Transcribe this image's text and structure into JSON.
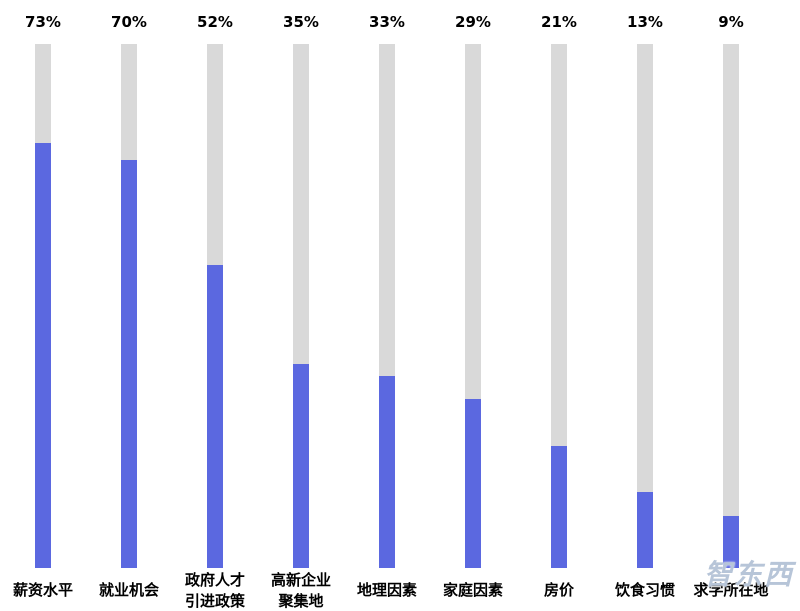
{
  "chart_data": {
    "type": "bar",
    "title": "",
    "xlabel": "",
    "ylabel": "",
    "ylim": [
      0,
      90
    ],
    "grid": false,
    "legend": "none",
    "categories": [
      "薪资水平",
      "就业机会",
      "政府人才引进政策",
      "高新企业聚集地",
      "地理因素",
      "家庭因素",
      "房价",
      "饮食习惯",
      "求学所在地"
    ],
    "categories_display": [
      [
        "薪资水平"
      ],
      [
        "就业机会"
      ],
      [
        "政府人才",
        "引进政策"
      ],
      [
        "高新企业",
        "聚集地"
      ],
      [
        "地理因素"
      ],
      [
        "家庭因素"
      ],
      [
        "房价"
      ],
      [
        "饮食习惯"
      ],
      [
        "求学所在地"
      ]
    ],
    "values": [
      73,
      70,
      52,
      35,
      33,
      29,
      21,
      13,
      9
    ],
    "value_labels": [
      "73%",
      "70%",
      "52%",
      "35%",
      "33%",
      "29%",
      "21%",
      "13%",
      "9%"
    ],
    "bar_color": "#5b68e0",
    "track_color": "#d9d9d9"
  },
  "watermark": {
    "text": "智东西"
  }
}
